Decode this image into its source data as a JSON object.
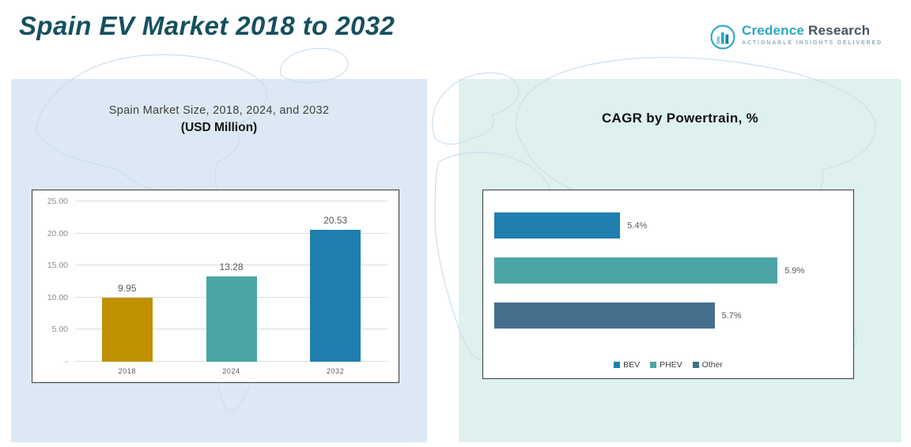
{
  "page": {
    "title": "Spain EV Market 2018 to 2032"
  },
  "logo": {
    "brand_part1": "Credence",
    "brand_part2": "Research",
    "tagline": "Actionable Insights Delivered"
  },
  "left_panel": {
    "title_line1": "Spain Market Size, 2018, 2024, and 2032",
    "title_line2": "(USD Million)"
  },
  "right_panel": {
    "title": "CAGR by Powertrain, %"
  },
  "chart_data": [
    {
      "type": "bar",
      "orientation": "vertical",
      "title": "Spain Market Size, 2018, 2024, and 2032 (USD Million)",
      "categories": [
        "2018",
        "2024",
        "2032"
      ],
      "values": [
        9.95,
        13.28,
        20.53
      ],
      "data_labels": [
        "9.95",
        "13.28",
        "20.53"
      ],
      "bar_colors": [
        "#BF9000",
        "#4BA5A5",
        "#1F7FAE"
      ],
      "xlabel": "",
      "ylabel": "",
      "ylim": [
        0,
        25
      ],
      "yticks": [
        {
          "value": 25,
          "label": "25.00"
        },
        {
          "value": 20,
          "label": "20.00"
        },
        {
          "value": 15,
          "label": "15.00"
        },
        {
          "value": 10,
          "label": "10.00"
        },
        {
          "value": 5,
          "label": "5.00"
        },
        {
          "value": 0,
          "label": "-"
        }
      ],
      "grid": true,
      "legend": null
    },
    {
      "type": "bar",
      "orientation": "horizontal",
      "title": "CAGR by Powertrain, %",
      "categories": [
        "BEV",
        "PHEV",
        "Other"
      ],
      "values": [
        5.4,
        5.9,
        5.7
      ],
      "data_labels": [
        "5.4%",
        "5.9%",
        "5.7%"
      ],
      "bar_colors": [
        "#1F7FAE",
        "#4BA5A5",
        "#44708E"
      ],
      "xlim": [
        5.0,
        6.0
      ],
      "grid": false,
      "legend": [
        "BEV",
        "PHEV",
        "Other"
      ],
      "legend_position": "bottom"
    }
  ],
  "colors": {
    "page_title": "#15505f",
    "left_panel_bg": "#dce9f4",
    "right_panel_bg": "#def1ee",
    "map_line": "#c8dceb"
  }
}
